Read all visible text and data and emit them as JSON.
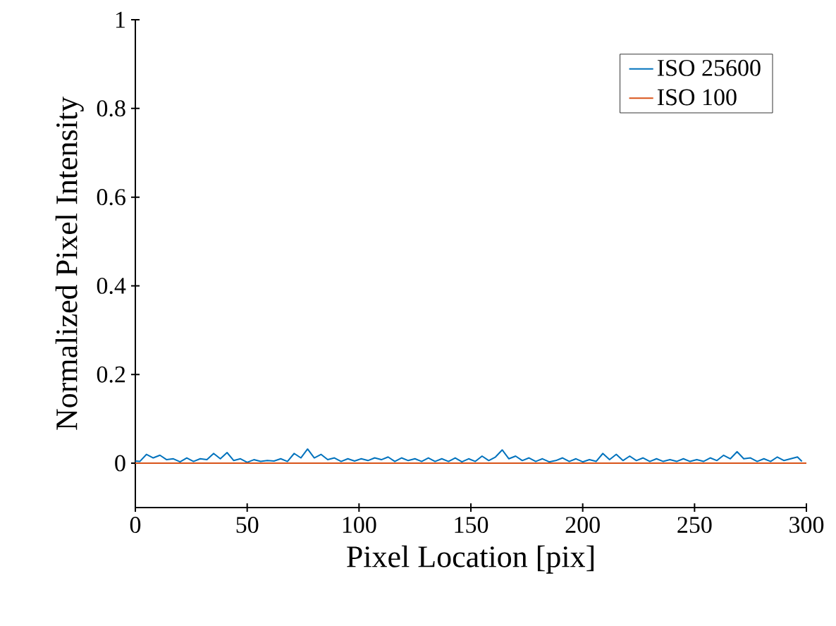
{
  "chart_data": {
    "type": "line",
    "xlabel": "Pixel Location [pix]",
    "ylabel": "Normalized Pixel Intensity",
    "xlim": [
      0,
      300
    ],
    "ylim": [
      -0.1,
      1
    ],
    "xticks": [
      0,
      50,
      100,
      150,
      200,
      250,
      300
    ],
    "yticks": [
      0,
      0.2,
      0.4,
      0.6,
      0.8,
      1
    ],
    "legend": "top right",
    "series": [
      {
        "name": "ISO 25600",
        "color": "#0072bd",
        "x": [
          0,
          2,
          5,
          8,
          11,
          14,
          17,
          20,
          23,
          26,
          29,
          32,
          35,
          38,
          41,
          44,
          47,
          50,
          53,
          56,
          59,
          62,
          65,
          68,
          71,
          74,
          77,
          80,
          83,
          86,
          89,
          92,
          95,
          98,
          101,
          104,
          107,
          110,
          113,
          116,
          119,
          122,
          125,
          128,
          131,
          134,
          137,
          140,
          143,
          146,
          149,
          152,
          155,
          158,
          161,
          164,
          167,
          170,
          173,
          176,
          179,
          182,
          185,
          188,
          191,
          194,
          197,
          200,
          203,
          206,
          209,
          212,
          215,
          218,
          221,
          224,
          227,
          230,
          233,
          236,
          239,
          242,
          245,
          248,
          251,
          254,
          257,
          260,
          263,
          266,
          269,
          272,
          275,
          278,
          281,
          284,
          287,
          290,
          293,
          296,
          298
        ],
        "values": [
          0.005,
          0.004,
          0.02,
          0.012,
          0.018,
          0.008,
          0.01,
          0.003,
          0.012,
          0.004,
          0.01,
          0.008,
          0.022,
          0.01,
          0.024,
          0.006,
          0.01,
          0.002,
          0.008,
          0.004,
          0.006,
          0.005,
          0.01,
          0.004,
          0.022,
          0.012,
          0.032,
          0.012,
          0.02,
          0.008,
          0.012,
          0.004,
          0.01,
          0.005,
          0.01,
          0.006,
          0.012,
          0.008,
          0.014,
          0.004,
          0.012,
          0.006,
          0.01,
          0.004,
          0.012,
          0.004,
          0.01,
          0.004,
          0.012,
          0.003,
          0.01,
          0.004,
          0.016,
          0.006,
          0.014,
          0.03,
          0.01,
          0.016,
          0.006,
          0.012,
          0.004,
          0.01,
          0.003,
          0.006,
          0.012,
          0.004,
          0.01,
          0.003,
          0.008,
          0.004,
          0.022,
          0.008,
          0.02,
          0.006,
          0.016,
          0.006,
          0.012,
          0.004,
          0.01,
          0.004,
          0.008,
          0.004,
          0.01,
          0.004,
          0.008,
          0.004,
          0.012,
          0.006,
          0.018,
          0.01,
          0.026,
          0.01,
          0.012,
          0.004,
          0.01,
          0.004,
          0.014,
          0.006,
          0.01,
          0.014,
          0.004
        ]
      },
      {
        "name": "ISO 100",
        "color": "#d95319",
        "x": [
          0,
          300
        ],
        "values": [
          0,
          0
        ]
      }
    ]
  }
}
